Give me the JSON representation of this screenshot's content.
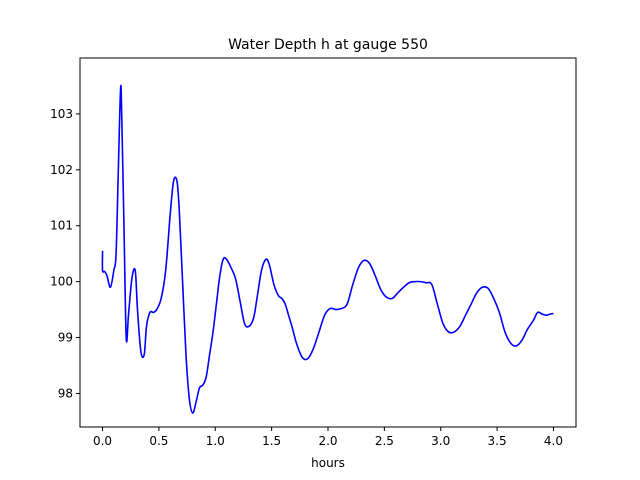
{
  "chart_data": {
    "type": "line",
    "title": "Water Depth h at gauge 550",
    "xlabel": "hours",
    "ylabel": "",
    "xlim": [
      -0.2,
      4.2
    ],
    "ylim": [
      97.4,
      104.0
    ],
    "xticks": [
      0.0,
      0.5,
      1.0,
      1.5,
      2.0,
      2.5,
      3.0,
      3.5,
      4.0
    ],
    "xtick_labels": [
      "0.0",
      "0.5",
      "1.0",
      "1.5",
      "2.0",
      "2.5",
      "3.0",
      "3.5",
      "4.0"
    ],
    "yticks": [
      98,
      99,
      100,
      101,
      102,
      103
    ],
    "ytick_labels": [
      "98",
      "99",
      "100",
      "101",
      "102",
      "103"
    ],
    "grid": false,
    "series": [
      {
        "color": "#0000ff",
        "x": [
          0.0,
          0.0,
          0.02,
          0.04,
          0.07,
          0.1,
          0.12,
          0.14,
          0.16,
          0.17,
          0.19,
          0.21,
          0.23,
          0.26,
          0.29,
          0.31,
          0.34,
          0.37,
          0.39,
          0.42,
          0.45,
          0.48,
          0.52,
          0.56,
          0.6,
          0.63,
          0.66,
          0.68,
          0.71,
          0.74,
          0.77,
          0.8,
          0.83,
          0.86,
          0.89,
          0.92,
          0.95,
          0.98,
          1.01,
          1.04,
          1.07,
          1.1,
          1.14,
          1.18,
          1.22,
          1.26,
          1.3,
          1.34,
          1.37,
          1.41,
          1.45,
          1.48,
          1.52,
          1.56,
          1.59,
          1.62,
          1.65,
          1.68,
          1.72,
          1.77,
          1.82,
          1.87,
          1.92,
          1.97,
          2.02,
          2.07,
          2.12,
          2.17,
          2.22,
          2.27,
          2.32,
          2.37,
          2.42,
          2.47,
          2.52,
          2.57,
          2.62,
          2.67,
          2.72,
          2.77,
          2.82,
          2.87,
          2.92,
          2.97,
          3.02,
          3.07,
          3.12,
          3.17,
          3.22,
          3.27,
          3.32,
          3.37,
          3.42,
          3.47,
          3.52,
          3.57,
          3.62,
          3.67,
          3.72,
          3.77,
          3.82,
          3.86,
          3.9,
          3.94,
          3.97,
          4.0
        ],
        "y": [
          100.55,
          100.2,
          100.18,
          100.1,
          99.9,
          100.2,
          100.5,
          102.0,
          103.45,
          103.0,
          101.0,
          99.0,
          99.4,
          100.05,
          100.2,
          99.5,
          98.75,
          98.7,
          99.2,
          99.45,
          99.45,
          99.5,
          99.7,
          100.2,
          101.2,
          101.8,
          101.8,
          101.3,
          100.0,
          98.7,
          97.9,
          97.65,
          97.85,
          98.1,
          98.15,
          98.3,
          98.7,
          99.1,
          99.6,
          100.1,
          100.4,
          100.4,
          100.25,
          100.05,
          99.65,
          99.25,
          99.2,
          99.35,
          99.7,
          100.2,
          100.4,
          100.3,
          99.95,
          99.75,
          99.7,
          99.6,
          99.4,
          99.2,
          98.9,
          98.65,
          98.62,
          98.8,
          99.1,
          99.4,
          99.52,
          99.5,
          99.52,
          99.6,
          99.95,
          100.25,
          100.38,
          100.32,
          100.1,
          99.85,
          99.72,
          99.7,
          99.8,
          99.9,
          99.98,
          100.0,
          100.0,
          99.98,
          99.95,
          99.6,
          99.25,
          99.1,
          99.1,
          99.2,
          99.4,
          99.6,
          99.8,
          99.9,
          99.88,
          99.7,
          99.45,
          99.1,
          98.9,
          98.85,
          98.95,
          99.15,
          99.3,
          99.45,
          99.42,
          99.4,
          99.42,
          99.43
        ]
      }
    ]
  }
}
